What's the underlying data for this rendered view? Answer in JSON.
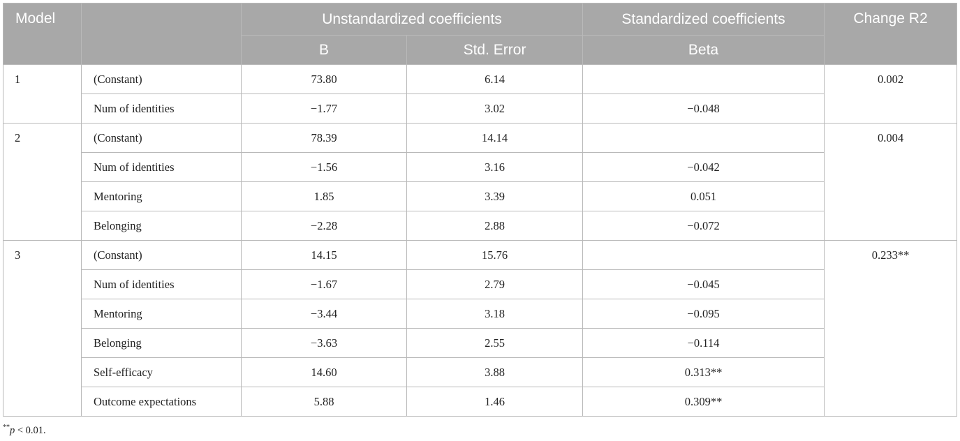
{
  "headers": {
    "model": "Model",
    "unstandardized": "Unstandardized coefficients",
    "standardized": "Standardized coefficients",
    "change_r2": "Change R2",
    "b": "B",
    "std_error": "Std. Error",
    "beta": "Beta"
  },
  "models": [
    {
      "model": "1",
      "change_r2": "0.002",
      "rows": [
        {
          "variable": "(Constant)",
          "b": "73.80",
          "se": "6.14",
          "beta": ""
        },
        {
          "variable": "Num of identities",
          "b": "−1.77",
          "se": "3.02",
          "beta": "−0.048"
        }
      ]
    },
    {
      "model": "2",
      "change_r2": "0.004",
      "rows": [
        {
          "variable": "(Constant)",
          "b": "78.39",
          "se": "14.14",
          "beta": ""
        },
        {
          "variable": "Num of identities",
          "b": "−1.56",
          "se": "3.16",
          "beta": "−0.042"
        },
        {
          "variable": "Mentoring",
          "b": "1.85",
          "se": "3.39",
          "beta": "0.051"
        },
        {
          "variable": "Belonging",
          "b": "−2.28",
          "se": "2.88",
          "beta": "−0.072"
        }
      ]
    },
    {
      "model": "3",
      "change_r2": "0.233**",
      "rows": [
        {
          "variable": "(Constant)",
          "b": "14.15",
          "se": "15.76",
          "beta": ""
        },
        {
          "variable": "Num of identities",
          "b": "−1.67",
          "se": "2.79",
          "beta": "−0.045"
        },
        {
          "variable": "Mentoring",
          "b": "−3.44",
          "se": "3.18",
          "beta": "−0.095"
        },
        {
          "variable": "Belonging",
          "b": "−3.63",
          "se": "2.55",
          "beta": "−0.114"
        },
        {
          "variable": "Self-efficacy",
          "b": "14.60",
          "se": "3.88",
          "beta": "0.313**"
        },
        {
          "variable": "Outcome expectations",
          "b": "5.88",
          "se": "1.46",
          "beta": "0.309**"
        }
      ]
    }
  ],
  "footnote": {
    "marker": "**",
    "symbol": "p",
    "text": " < 0.01."
  }
}
